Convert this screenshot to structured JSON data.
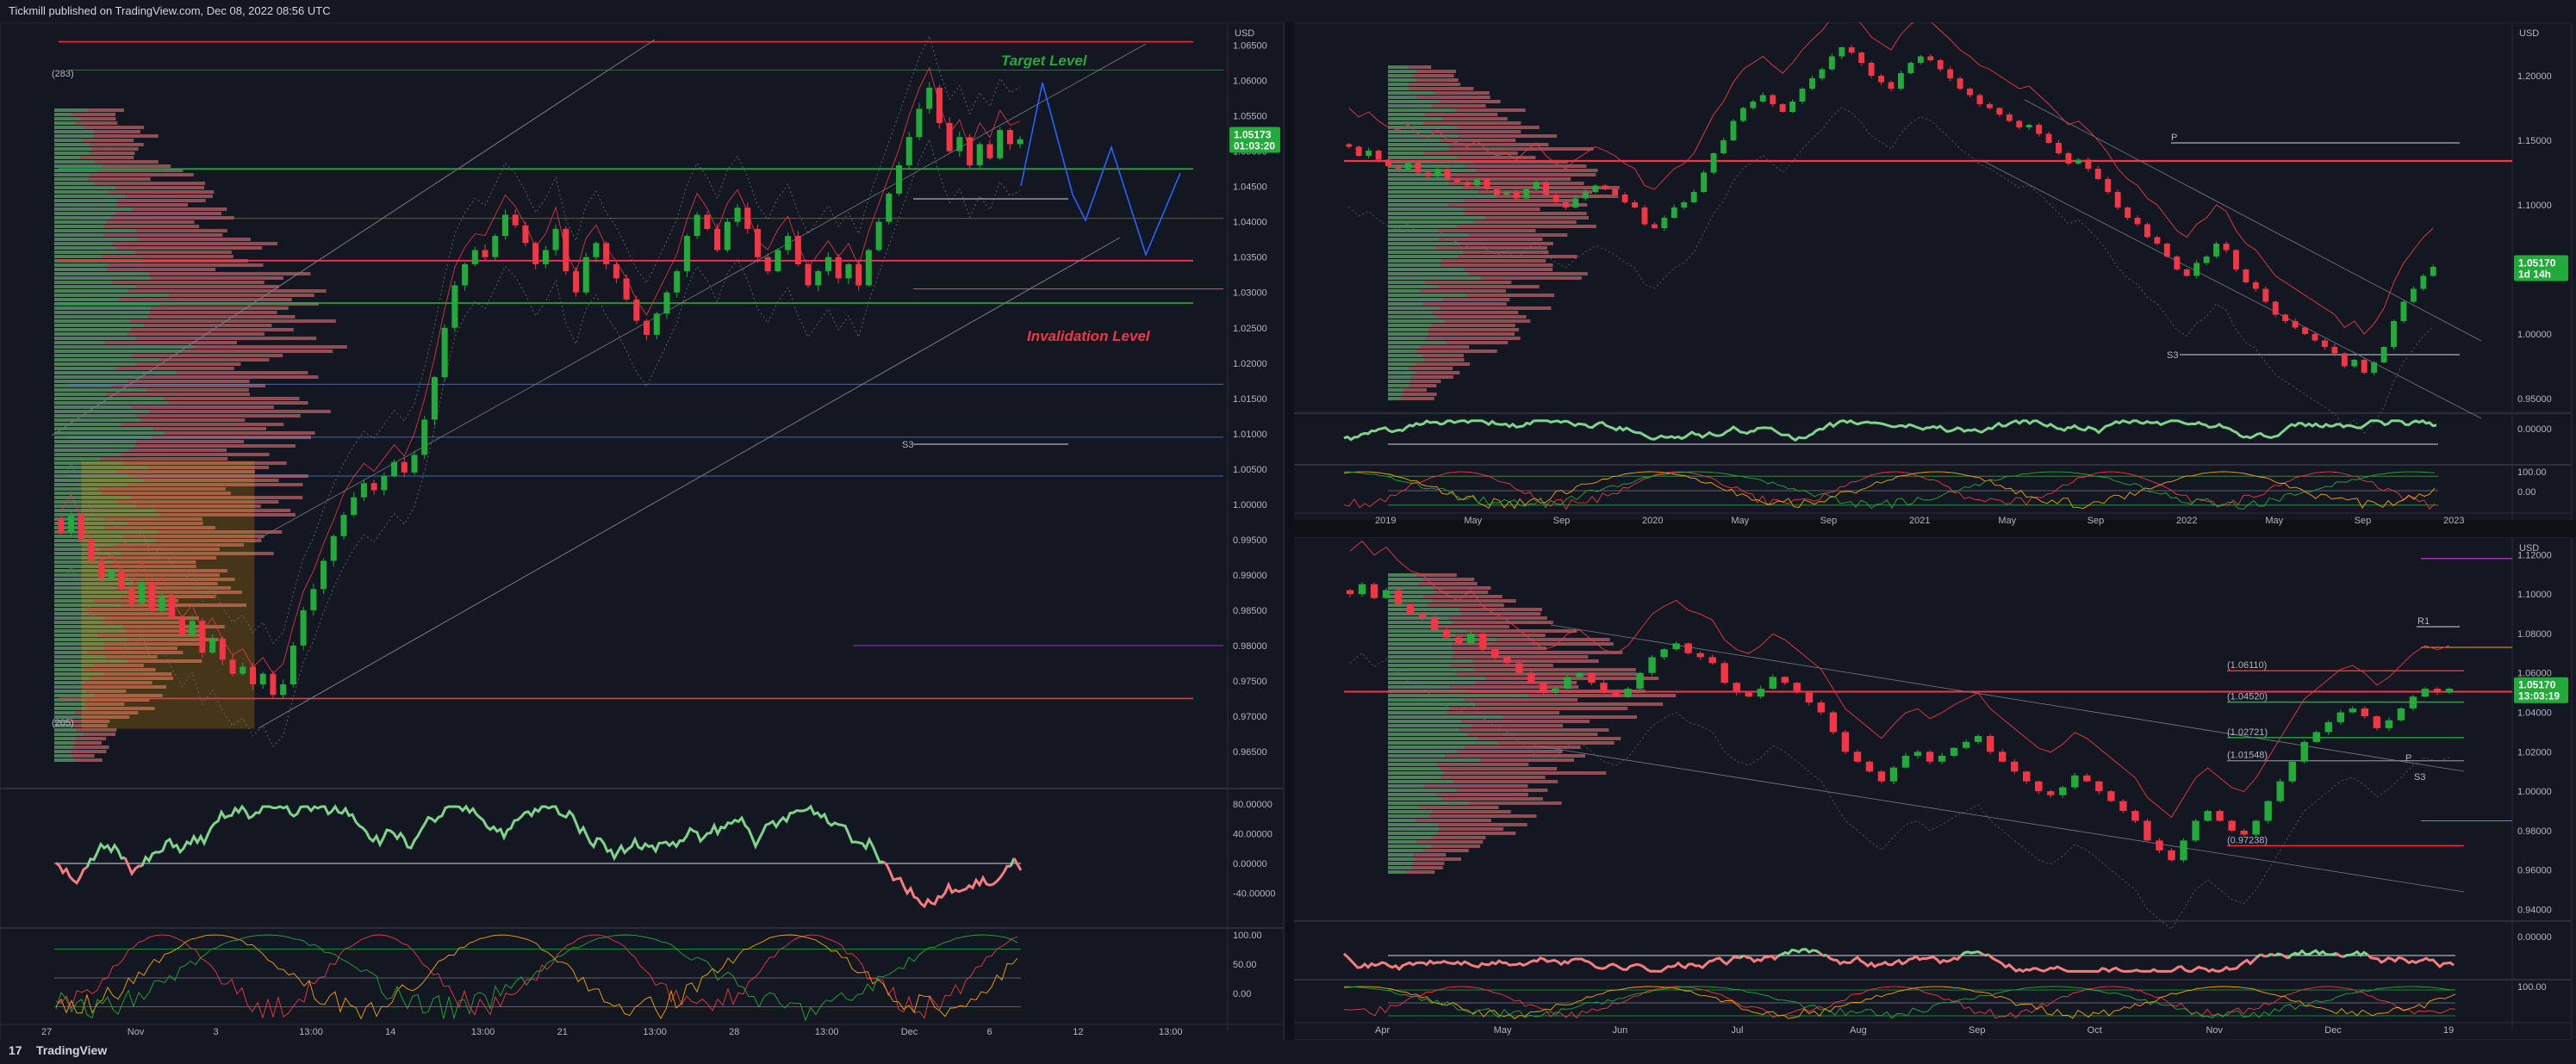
{
  "header": {
    "text": "Tickmill published on TradingView.com, Dec 08, 2022 08:56 UTC"
  },
  "footer": {
    "logo_text": "TradingView"
  },
  "colors": {
    "background": "#131722",
    "up": "#22ab3a",
    "down": "#f23645",
    "pane_border": "#2a2e39",
    "vp_up": "#7fd38a",
    "vp_down": "#f77c80",
    "target": "#22ab3a",
    "invalidation": "#f23645",
    "blue_path": "#2962ff"
  },
  "chart_data": [
    {
      "type": "candlestick",
      "pane": "main-4h",
      "symbol_price": "1.05173",
      "countdown": "01:03:20",
      "y_axis_top": "USD",
      "yticks": [
        "1.06500",
        "1.06000",
        "1.05500",
        "1.05000",
        "1.04500",
        "1.04000",
        "1.03500",
        "1.03000",
        "1.02500",
        "1.02000",
        "1.01500",
        "1.01000",
        "1.00500",
        "1.00000",
        "0.99500",
        "0.99000",
        "0.98500",
        "0.98000",
        "0.97500",
        "0.97000",
        "0.96500",
        "0.96000"
      ],
      "xticks": [
        "27",
        "Nov",
        "3",
        "13:00",
        "14",
        "13:00",
        "21",
        "13:00",
        "28",
        "13:00",
        "Dec",
        "6",
        "12",
        "13:00"
      ],
      "annotations": {
        "target": "Target Level",
        "invalidation": "Invalidation Level",
        "s3": "S3",
        "level_top": "(283)",
        "level_bottom": "(205)"
      },
      "osc_ticks": [
        "80.00000",
        "40.00000",
        "0.00000",
        "-40.00000"
      ],
      "stoch_ticks": [
        "100.00",
        "50.00",
        "0.00"
      ],
      "close_series": [
        0.996,
        0.9985,
        0.995,
        0.992,
        0.9895,
        0.9905,
        0.988,
        0.986,
        0.989,
        0.985,
        0.987,
        0.984,
        0.9815,
        0.9835,
        0.979,
        0.981,
        0.978,
        0.976,
        0.977,
        0.9745,
        0.976,
        0.973,
        0.9745,
        0.98,
        0.985,
        0.988,
        0.992,
        0.9955,
        0.9985,
        1.001,
        1.003,
        1.002,
        1.004,
        1.006,
        1.0045,
        1.007,
        1.012,
        1.018,
        1.025,
        1.031,
        1.034,
        1.036,
        1.035,
        1.038,
        1.041,
        1.0395,
        1.037,
        1.034,
        1.036,
        1.039,
        1.033,
        1.03,
        1.035,
        1.037,
        1.034,
        1.032,
        1.029,
        1.026,
        1.024,
        1.027,
        1.03,
        1.033,
        1.038,
        1.041,
        1.039,
        1.036,
        1.04,
        1.042,
        1.039,
        1.035,
        1.033,
        1.036,
        1.038,
        1.034,
        1.031,
        1.033,
        1.035,
        1.032,
        1.034,
        1.031,
        1.036,
        1.04,
        1.044,
        1.048,
        1.052,
        1.056,
        1.059,
        1.054,
        1.05,
        1.052,
        1.048,
        1.051,
        1.049,
        1.053,
        1.051,
        1.0517
      ]
    },
    {
      "type": "candlestick",
      "pane": "weekly",
      "symbol_price": "1.05170",
      "countdown": "1d 14h",
      "y_axis_top": "USD",
      "yticks": [
        "1.20000",
        "1.15000",
        "1.10000",
        "1.05000",
        "1.00000",
        "0.95000"
      ],
      "xticks": [
        "2019",
        "May",
        "Sep",
        "2020",
        "May",
        "Sep",
        "2021",
        "May",
        "Sep",
        "2022",
        "May",
        "Sep",
        "2023"
      ],
      "osc_ticks": [
        "0.00000"
      ],
      "stoch_ticks": [
        "100.00",
        "0.00"
      ],
      "pivot_labels": [
        "P",
        "S3"
      ],
      "close_series": [
        1.145,
        1.138,
        1.142,
        1.135,
        1.13,
        1.128,
        1.132,
        1.125,
        1.122,
        1.128,
        1.12,
        1.118,
        1.115,
        1.12,
        1.112,
        1.108,
        1.11,
        1.105,
        1.112,
        1.118,
        1.108,
        1.102,
        1.098,
        1.105,
        1.11,
        1.115,
        1.112,
        1.108,
        1.102,
        1.098,
        1.085,
        1.082,
        1.09,
        1.098,
        1.102,
        1.11,
        1.125,
        1.14,
        1.15,
        1.165,
        1.175,
        1.18,
        1.185,
        1.178,
        1.172,
        1.18,
        1.19,
        1.198,
        1.205,
        1.215,
        1.222,
        1.218,
        1.21,
        1.2,
        1.195,
        1.19,
        1.202,
        1.21,
        1.215,
        1.212,
        1.205,
        1.198,
        1.19,
        1.185,
        1.178,
        1.175,
        1.17,
        1.165,
        1.16,
        1.162,
        1.155,
        1.148,
        1.14,
        1.132,
        1.135,
        1.128,
        1.12,
        1.11,
        1.098,
        1.09,
        1.085,
        1.075,
        1.07,
        1.06,
        1.05,
        1.045,
        1.055,
        1.06,
        1.07,
        1.065,
        1.05,
        1.04,
        1.035,
        1.025,
        1.015,
        1.01,
        1.005,
        1.0,
        0.995,
        0.99,
        0.985,
        0.975,
        0.98,
        0.97,
        0.978,
        0.99,
        1.01,
        1.025,
        1.035,
        1.045,
        1.052
      ]
    },
    {
      "type": "candlestick",
      "pane": "daily",
      "symbol_price": "1.05170",
      "countdown": "13:03:19",
      "y_axis_top": "USD",
      "yticks": [
        "1.12000",
        "1.10000",
        "1.08000",
        "1.06000",
        "1.04000",
        "1.02000",
        "1.00000",
        "0.98000",
        "0.96000",
        "0.94000"
      ],
      "xticks": [
        "Apr",
        "May",
        "Jun",
        "Jul",
        "Aug",
        "Sep",
        "Oct",
        "Nov",
        "Dec",
        "19"
      ],
      "osc_ticks": [
        "0.00000"
      ],
      "stoch_ticks": [
        "100.00"
      ],
      "levels": [
        "(1.06110)",
        "(1.04520)",
        "(1.02721)",
        "(1.01548)",
        "(0.97238)"
      ],
      "pivot_labels": [
        "R1",
        "P",
        "S3"
      ],
      "close_series": [
        1.1,
        1.105,
        1.098,
        1.102,
        1.095,
        1.09,
        1.088,
        1.082,
        1.078,
        1.075,
        1.08,
        1.072,
        1.068,
        1.065,
        1.06,
        1.055,
        1.05,
        1.052,
        1.058,
        1.06,
        1.055,
        1.05,
        1.048,
        1.052,
        1.06,
        1.068,
        1.072,
        1.075,
        1.07,
        1.068,
        1.065,
        1.055,
        1.05,
        1.048,
        1.052,
        1.058,
        1.055,
        1.05,
        1.045,
        1.04,
        1.03,
        1.02,
        1.015,
        1.01,
        1.005,
        1.012,
        1.018,
        1.02,
        1.015,
        1.018,
        1.022,
        1.025,
        1.028,
        1.02,
        1.015,
        1.01,
        1.005,
        1.0,
        0.998,
        1.002,
        1.008,
        1.005,
        1.0,
        0.995,
        0.99,
        0.985,
        0.975,
        0.97,
        0.965,
        0.975,
        0.985,
        0.99,
        0.985,
        0.98,
        0.978,
        0.985,
        0.995,
        1.005,
        1.015,
        1.025,
        1.03,
        1.035,
        1.04,
        1.042,
        1.038,
        1.032,
        1.036,
        1.042,
        1.048,
        1.052,
        1.05,
        1.052
      ]
    }
  ]
}
